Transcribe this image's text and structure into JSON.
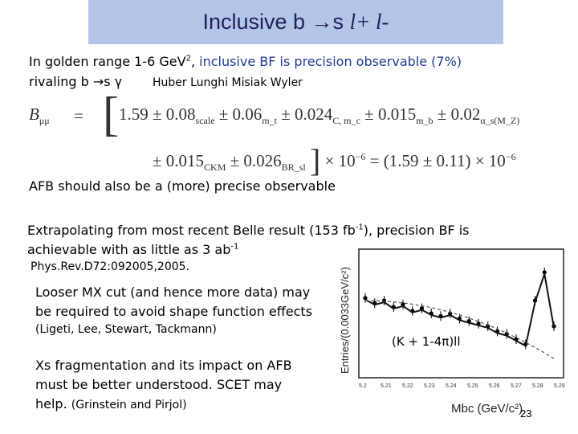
{
  "title": {
    "prefix": "Inclusive b ",
    "arrow": "→",
    "s": "s ",
    "suffix": "l+ l-"
  },
  "golden": {
    "line1_a": "In golden range 1-6 GeV",
    "line1_sup": "2",
    "line1_b": ", ",
    "line1_blue": "inclusive BF is precision observable (7%)",
    "line2": "rivaling b →s γ",
    "authors": "Huber Lunghi Misiak Wyler"
  },
  "equation": {
    "lhs": "B",
    "lhs_sub": "μμ",
    "eq": "=",
    "row1": [
      {
        "val": "1.59 ± 0.08",
        "sub": "scale"
      },
      {
        "val": "± 0.06",
        "sub": "m_t"
      },
      {
        "val": "± 0.024",
        "sub": "C, m_c"
      },
      {
        "val": "± 0.015",
        "sub": "m_b"
      },
      {
        "val": "± 0.02",
        "sub": "α_s(M_Z)"
      }
    ],
    "row2": [
      {
        "val": "± 0.015",
        "sub": "CKM"
      },
      {
        "val": "± 0.026",
        "sub": "BR_sl"
      }
    ],
    "row2_tail": "× 10",
    "row2_exp": "−6",
    "row2_eq": "= (1.59 ± 0.11) × 10",
    "row2_exp2": "−6"
  },
  "afb": "AFB should also be a (more) precise observable",
  "extrap": {
    "line1_a": "Extrapolating from most recent Belle result (153 fb",
    "line1_sup": "-1",
    "line1_b": "), precision BF is",
    "line2_a": "achievable with as little as 3 ab",
    "line2_sup": "-1",
    "ref": "Phys.Rev.D72:092005,2005."
  },
  "looser": {
    "line1": "Looser MX cut (and hence more data) may",
    "line2": "be required to avoid shape function effects",
    "ref": "(Ligeti, Lee, Stewart, Tackmann)"
  },
  "xs": {
    "line1": "Xs fragmentation and its impact on AFB",
    "line2": "must be better understood.  SCET may",
    "line3": "help.",
    "ref": "(Grinstein and Pirjol)"
  },
  "chart_data": {
    "type": "scatter",
    "ylabel": "Entries/(0.0033GeV/c²)",
    "xlabel": "Mbc (GeV/c²)",
    "annotation": "(K + 1-4π)ll",
    "x_ticks": [
      "5.2",
      "5.21",
      "5.22",
      "5.23",
      "5.24",
      "5.25",
      "5.26",
      "5.27",
      "5.28",
      "5.29"
    ],
    "xlim": [
      5.2,
      5.29
    ],
    "points_relative": [
      0.62,
      0.58,
      0.6,
      0.55,
      0.57,
      0.52,
      0.54,
      0.5,
      0.48,
      0.5,
      0.46,
      0.44,
      0.42,
      0.4,
      0.36,
      0.34,
      0.3,
      0.26,
      0.6,
      0.82,
      0.4
    ]
  },
  "page_number": "23"
}
